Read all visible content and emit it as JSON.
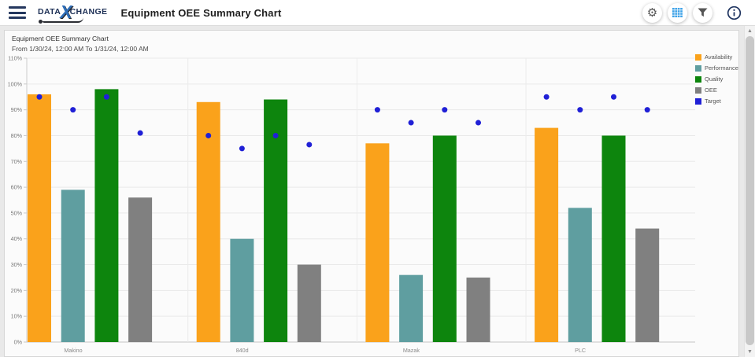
{
  "header": {
    "logo": {
      "word1": "DATA",
      "letter": "X",
      "word2": "CHANGE"
    },
    "title": "Equipment OEE Summary Chart",
    "toolbar": [
      {
        "id": "settings",
        "icon": "gear-icon",
        "active": false
      },
      {
        "id": "chart-grid-view",
        "icon": "grid-icon",
        "active": true
      },
      {
        "id": "filter",
        "icon": "filter-icon",
        "active": false
      },
      {
        "id": "info",
        "icon": "info-icon",
        "active": false
      }
    ]
  },
  "chart_data": {
    "type": "bar",
    "title": "Equipment OEE Summary Chart",
    "subtitle": "From 1/30/24, 12:00 AM To 1/31/24, 12:00 AM",
    "categories": [
      "Makino",
      "840d",
      "Mazak",
      "PLC"
    ],
    "series": [
      {
        "name": "Availability",
        "type": "bar",
        "color": "#FAA21B",
        "values": [
          96,
          93,
          77,
          83
        ]
      },
      {
        "name": "Performance",
        "type": "bar",
        "color": "#5F9EA0",
        "values": [
          59,
          40,
          26,
          52
        ]
      },
      {
        "name": "Quality",
        "type": "bar",
        "color": "#0D850D",
        "values": [
          98,
          94,
          80,
          80
        ]
      },
      {
        "name": "OEE",
        "type": "bar",
        "color": "#808080",
        "values": [
          56,
          30,
          25,
          44
        ]
      },
      {
        "name": "Target",
        "type": "point",
        "color": "#2020D6",
        "values_per_bar": [
          [
            95,
            90,
            95,
            81
          ],
          [
            80,
            75,
            80,
            76.5
          ],
          [
            90,
            85,
            90,
            85
          ],
          [
            95,
            90,
            95,
            90
          ]
        ]
      }
    ],
    "ylim": [
      0,
      110
    ],
    "ytick_step": 10,
    "yticks": [
      "0%",
      "10%",
      "20%",
      "30%",
      "40%",
      "50%",
      "60%",
      "70%",
      "80%",
      "90%",
      "100%",
      "110%"
    ],
    "grid": true,
    "legend_position": "top-right",
    "legend": [
      "Availability",
      "Performance",
      "Quality",
      "OEE",
      "Target"
    ]
  },
  "colors": {
    "accent_blue": "#3FA3E8",
    "navy": "#1F3460",
    "target_dot": "#2020D6",
    "icon_gray": "#555555"
  },
  "scrollbar": {
    "up_arrow": "▲",
    "down_arrow": "▼"
  }
}
